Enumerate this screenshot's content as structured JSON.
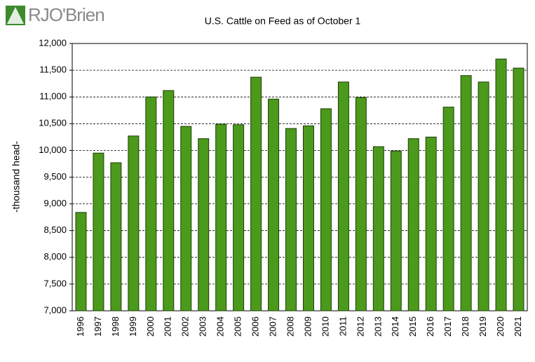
{
  "brand": "RJO'Brien",
  "chart_data": {
    "type": "bar",
    "title": "U.S. Cattle on Feed as of October 1",
    "y_label": "-thousand head-",
    "categories": [
      "1996",
      "1997",
      "1998",
      "1999",
      "2000",
      "2001",
      "2002",
      "2003",
      "2004",
      "2005",
      "2006",
      "2007",
      "2008",
      "2009",
      "2010",
      "2011",
      "2012",
      "2013",
      "2014",
      "2015",
      "2016",
      "2017",
      "2018",
      "2019",
      "2020",
      "2021"
    ],
    "values": [
      8840,
      9950,
      9770,
      10270,
      11000,
      11120,
      10450,
      10220,
      10490,
      10480,
      11370,
      10960,
      10410,
      10460,
      10780,
      11280,
      10990,
      10070,
      9990,
      10220,
      10250,
      10810,
      11400,
      11280,
      11710,
      11540
    ],
    "color": "#4b9a1b",
    "ylim": [
      7000,
      12000
    ],
    "yticks": [
      {
        "value": 7000,
        "label": "7,000"
      },
      {
        "value": 7500,
        "label": "7,500"
      },
      {
        "value": 8000,
        "label": "8,000"
      },
      {
        "value": 8500,
        "label": "8,500"
      },
      {
        "value": 9000,
        "label": "9,000"
      },
      {
        "value": 9500,
        "label": "9,500"
      },
      {
        "value": 10000,
        "label": "10,000"
      },
      {
        "value": 10500,
        "label": "10,500"
      },
      {
        "value": 11000,
        "label": "11,000"
      },
      {
        "value": 11500,
        "label": "11,500"
      },
      {
        "value": 12000,
        "label": "12,000"
      }
    ],
    "grid": true
  }
}
